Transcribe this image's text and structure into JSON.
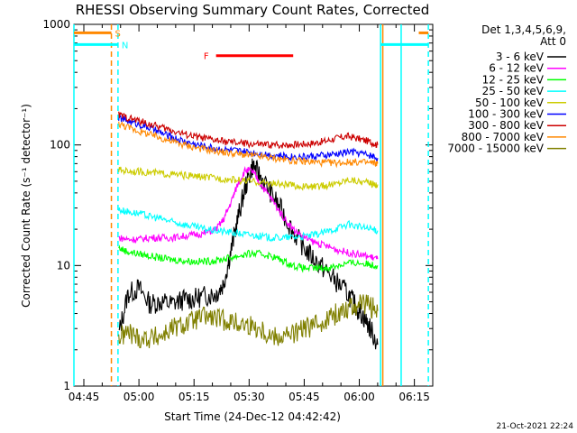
{
  "chart_data": {
    "type": "line",
    "title": "RHESSI Observing Summary Count Rates, Corrected",
    "xlabel": "Start Time (24-Dec-12 04:42:42)",
    "ylabel": "Corrected Count Rate (s⁻¹ detector⁻¹)",
    "yscale": "log",
    "ylim": [
      1,
      1000
    ],
    "xlim_minutes": [
      -2.7,
      95
    ],
    "x_unit": "minutes after 04:45",
    "xticks": [
      {
        "label": "04:45",
        "value": 0
      },
      {
        "label": "05:00",
        "value": 15
      },
      {
        "label": "05:15",
        "value": 30
      },
      {
        "label": "05:30",
        "value": 45
      },
      {
        "label": "05:45",
        "value": 60
      },
      {
        "label": "06:00",
        "value": 75
      },
      {
        "label": "06:15",
        "value": 90
      }
    ],
    "yticks": [
      {
        "label": "1",
        "value": 1
      },
      {
        "label": "10",
        "value": 10
      },
      {
        "label": "100",
        "value": 100
      },
      {
        "label": "1000",
        "value": 1000
      }
    ],
    "legend": {
      "placement": "right",
      "header1": "Det 1,3,4,5,6,9,",
      "header2": "Att 0"
    },
    "series": [
      {
        "name": "3 - 6 keV",
        "color": "#000000",
        "x": [
          9.5,
          12,
          15,
          18,
          21,
          24,
          27,
          30,
          33,
          36,
          38,
          40,
          42,
          44,
          46,
          48,
          51,
          54,
          57,
          60,
          63,
          66,
          69,
          72,
          74,
          76,
          78,
          80
        ],
        "y": [
          2.7,
          5.8,
          6.5,
          4.8,
          5.0,
          4.8,
          5.2,
          5.3,
          5.6,
          5.8,
          7.0,
          13,
          25,
          45,
          68,
          55,
          40,
          28,
          19,
          14,
          11,
          9.0,
          7.2,
          5.8,
          4.6,
          3.8,
          3.0,
          2.2
        ]
      },
      {
        "name": "6 - 12 keV",
        "color": "#ff00ff",
        "x": [
          9.5,
          12,
          15,
          18,
          21,
          24,
          27,
          30,
          33,
          36,
          38,
          40,
          42,
          44,
          46,
          48,
          51,
          54,
          57,
          60,
          63,
          66,
          69,
          72,
          75,
          78,
          80
        ],
        "y": [
          17,
          16.5,
          16.5,
          17,
          17,
          17,
          17.5,
          18,
          18.5,
          20,
          24,
          33,
          48,
          62,
          60,
          48,
          36,
          26,
          20,
          17,
          15.5,
          14.5,
          13.5,
          12.8,
          12.3,
          11.8,
          11.3
        ]
      },
      {
        "name": "12 - 25 keV",
        "color": "#00ff00",
        "x": [
          9.5,
          12,
          15,
          18,
          21,
          24,
          27,
          30,
          33,
          36,
          39,
          42,
          45,
          48,
          51,
          54,
          57,
          60,
          63,
          66,
          69,
          72,
          75,
          78,
          80
        ],
        "y": [
          14,
          13,
          12.5,
          12,
          11.5,
          11.2,
          11,
          10.8,
          10.8,
          11,
          11.5,
          12,
          12.5,
          12.5,
          12,
          11,
          10,
          9.5,
          9.5,
          9.5,
          10,
          10.5,
          10.5,
          10.2,
          10
        ]
      },
      {
        "name": "25 - 50 keV",
        "color": "#00ffff",
        "x": [
          9.5,
          12,
          15,
          18,
          21,
          24,
          27,
          30,
          33,
          36,
          39,
          42,
          45,
          48,
          51,
          54,
          57,
          60,
          63,
          66,
          69,
          72,
          75,
          78,
          80
        ],
        "y": [
          29,
          28,
          27,
          25.5,
          24.5,
          23,
          22,
          21,
          20,
          19.5,
          19,
          18.5,
          18,
          17.5,
          17,
          17,
          17.2,
          17.5,
          18,
          19,
          20.5,
          22,
          21,
          20,
          19.5
        ]
      },
      {
        "name": "50 - 100 keV",
        "color": "#cccc00",
        "x": [
          9.5,
          12,
          15,
          18,
          21,
          24,
          27,
          30,
          33,
          36,
          39,
          42,
          45,
          48,
          51,
          54,
          57,
          60,
          63,
          66,
          69,
          72,
          75,
          78,
          80
        ],
        "y": [
          62,
          61,
          60,
          59,
          58,
          57,
          56,
          55,
          54,
          53,
          52,
          51,
          50,
          49,
          48,
          47,
          46,
          45,
          45,
          46,
          48,
          52,
          50,
          48,
          47
        ]
      },
      {
        "name": "100 - 300 keV",
        "color": "#0000ff",
        "x": [
          9.5,
          12,
          15,
          18,
          21,
          24,
          27,
          30,
          33,
          36,
          39,
          42,
          45,
          48,
          51,
          54,
          57,
          60,
          63,
          66,
          69,
          72,
          75,
          78,
          80
        ],
        "y": [
          168,
          158,
          148,
          138,
          126,
          116,
          108,
          102,
          97,
          94,
          91,
          89,
          87,
          85,
          83,
          81,
          80,
          80,
          81,
          82,
          84,
          88,
          86,
          82,
          78
        ]
      },
      {
        "name": "300 - 800 keV",
        "color": "#cc0000",
        "x": [
          9.5,
          12,
          15,
          18,
          21,
          24,
          27,
          30,
          33,
          36,
          39,
          42,
          45,
          48,
          51,
          54,
          57,
          60,
          63,
          66,
          69,
          72,
          75,
          78,
          80
        ],
        "y": [
          178,
          168,
          158,
          148,
          140,
          132,
          124,
          118,
          113,
          109,
          106,
          104,
          102,
          101,
          100,
          100,
          101,
          102,
          104,
          108,
          114,
          118,
          112,
          106,
          100
        ]
      },
      {
        "name": "800 - 7000 keV",
        "color": "#ff8800",
        "x": [
          9.5,
          12,
          15,
          18,
          21,
          24,
          27,
          30,
          33,
          36,
          39,
          42,
          45,
          48,
          51,
          54,
          57,
          60,
          63,
          66,
          69,
          72,
          75,
          78,
          80
        ],
        "y": [
          150,
          140,
          130,
          122,
          114,
          107,
          101,
          96,
          92,
          89,
          86,
          84,
          82,
          80,
          78,
          76,
          74,
          73,
          72,
          71,
          71,
          72,
          72,
          71,
          70
        ]
      },
      {
        "name": "7000 - 15000 keV",
        "color": "#808000",
        "x": [
          9.5,
          12,
          15,
          18,
          21,
          24,
          27,
          30,
          33,
          36,
          39,
          42,
          45,
          48,
          51,
          54,
          57,
          60,
          63,
          66,
          69,
          72,
          75,
          78,
          80
        ],
        "y": [
          2.5,
          2.8,
          2.5,
          2.5,
          2.6,
          3.0,
          3.2,
          3.5,
          3.8,
          3.6,
          3.5,
          3.3,
          3.2,
          3.0,
          2.6,
          2.6,
          2.7,
          3.0,
          3.2,
          3.6,
          4.0,
          4.5,
          4.8,
          4.6,
          4.2
        ]
      }
    ],
    "annotations": {
      "vertical_lines": [
        {
          "x": -2.7,
          "color": "#00ffff",
          "style": "solid"
        },
        {
          "x": 7.5,
          "color": "#ff8800",
          "style": "dashed"
        },
        {
          "x": 9.3,
          "color": "#00ffff",
          "style": "dashed"
        },
        {
          "x": 86.4,
          "color": "#00ffff",
          "style": "solid"
        },
        {
          "x": 81.4,
          "color": "#ff8800",
          "style": "solid"
        },
        {
          "x": 93.8,
          "color": "#00ffff",
          "style": "dashed"
        },
        {
          "x": 80.8,
          "color": "#00ffff",
          "style": "solid"
        }
      ],
      "bars": [
        {
          "label": "S",
          "color": "#ff8800",
          "x_start": -2.7,
          "x_end": 7.5,
          "y": 850
        },
        {
          "label": "N",
          "color": "#00ffff",
          "x_start": -2.7,
          "x_end": 9.3,
          "y": 680
        },
        {
          "label": "",
          "color": "#ff8800",
          "x_start": 91.2,
          "x_end": 93.8,
          "y": 850
        },
        {
          "label": "",
          "color": "#00ffff",
          "x_start": 80.8,
          "x_end": 93.8,
          "y": 680
        },
        {
          "label": "F",
          "color": "#ff0000",
          "x_start": 36,
          "x_end": 57,
          "y": 550
        }
      ]
    },
    "footer_timestamp": "21-Oct-2021 22:24"
  }
}
